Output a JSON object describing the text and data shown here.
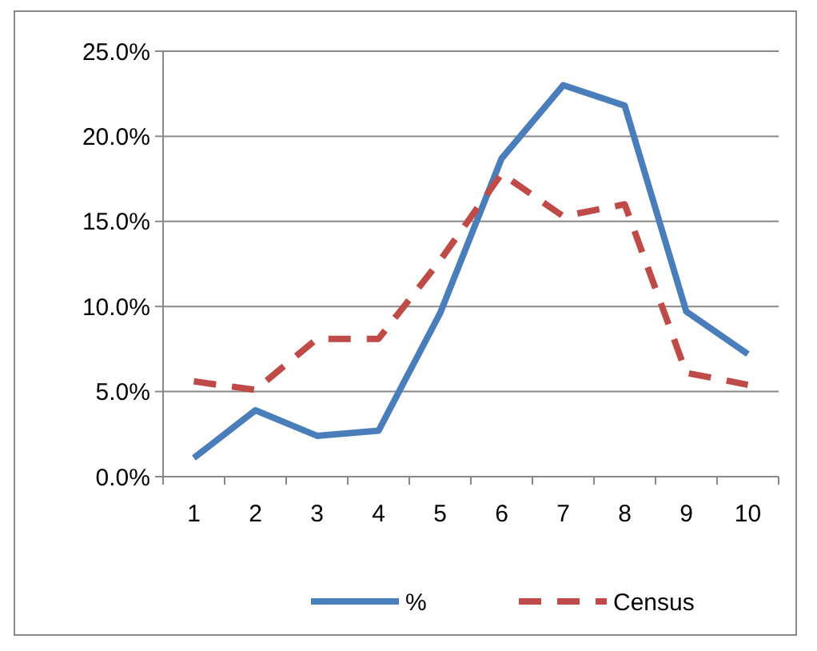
{
  "chart_data": {
    "type": "line",
    "categories": [
      "1",
      "2",
      "3",
      "4",
      "5",
      "6",
      "7",
      "8",
      "9",
      "10"
    ],
    "series": [
      {
        "name": "%",
        "color": "#4a7ebb",
        "values": [
          1.1,
          3.9,
          2.4,
          2.7,
          9.6,
          18.7,
          23.0,
          21.8,
          9.7,
          7.2
        ],
        "line_style": "solid"
      },
      {
        "name": "Census",
        "color": "#be4b48",
        "values": [
          5.6,
          5.1,
          8.1,
          8.1,
          12.7,
          17.8,
          15.3,
          16.0,
          6.1,
          5.4
        ],
        "line_style": "dashed"
      }
    ],
    "ylim": [
      0,
      25
    ],
    "yticks": [
      {
        "value": 0,
        "label": "0.0%"
      },
      {
        "value": 5,
        "label": "5.0%"
      },
      {
        "value": 10,
        "label": "10.0%"
      },
      {
        "value": 15,
        "label": "15.0%"
      },
      {
        "value": 20,
        "label": "20.0%"
      },
      {
        "value": 25,
        "label": "25.0%"
      }
    ],
    "grid": "y",
    "legend": "bottom",
    "marker": "none"
  }
}
